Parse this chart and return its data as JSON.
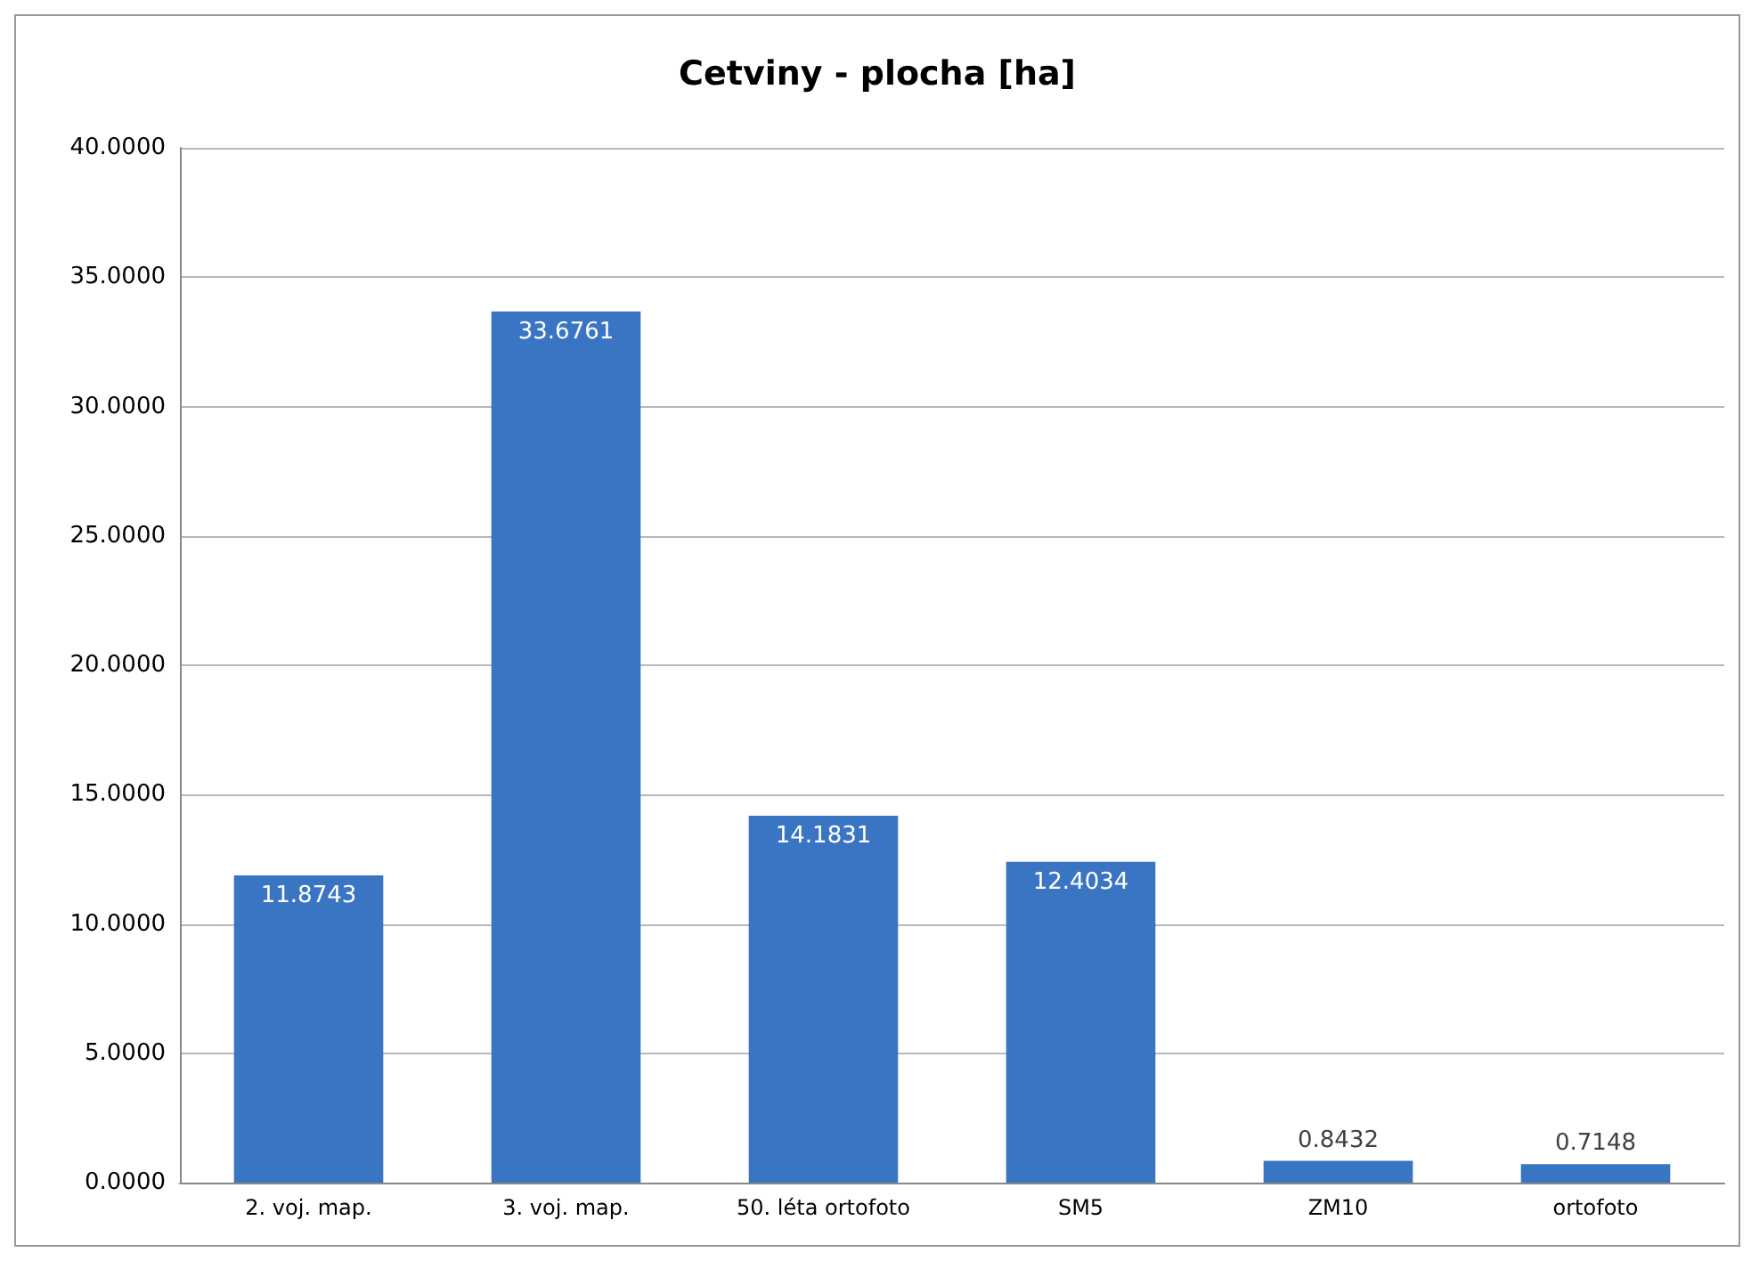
{
  "chart_data": {
    "type": "bar",
    "title": "Cetviny - plocha [ha]",
    "categories": [
      "2. voj. map.",
      "3. voj. map.",
      "50. léta ortofoto",
      "SM5",
      "ZM10",
      "ortofoto"
    ],
    "values": [
      11.8743,
      33.6761,
      14.1831,
      12.4034,
      0.8432,
      0.7148
    ],
    "color": "#3a75c4",
    "ylim": [
      0,
      40
    ],
    "yticks": [
      {
        "value": 0,
        "label": "0.0000"
      },
      {
        "value": 5,
        "label": "5.0000"
      },
      {
        "value": 10,
        "label": "10.0000"
      },
      {
        "value": 15,
        "label": "15.0000"
      },
      {
        "value": 20,
        "label": "20.0000"
      },
      {
        "value": 25,
        "label": "25.0000"
      },
      {
        "value": 30,
        "label": "30.0000"
      },
      {
        "value": 35,
        "label": "35.0000"
      },
      {
        "value": 40,
        "label": "40.0000"
      }
    ],
    "grid": "y",
    "data_labels": true
  }
}
